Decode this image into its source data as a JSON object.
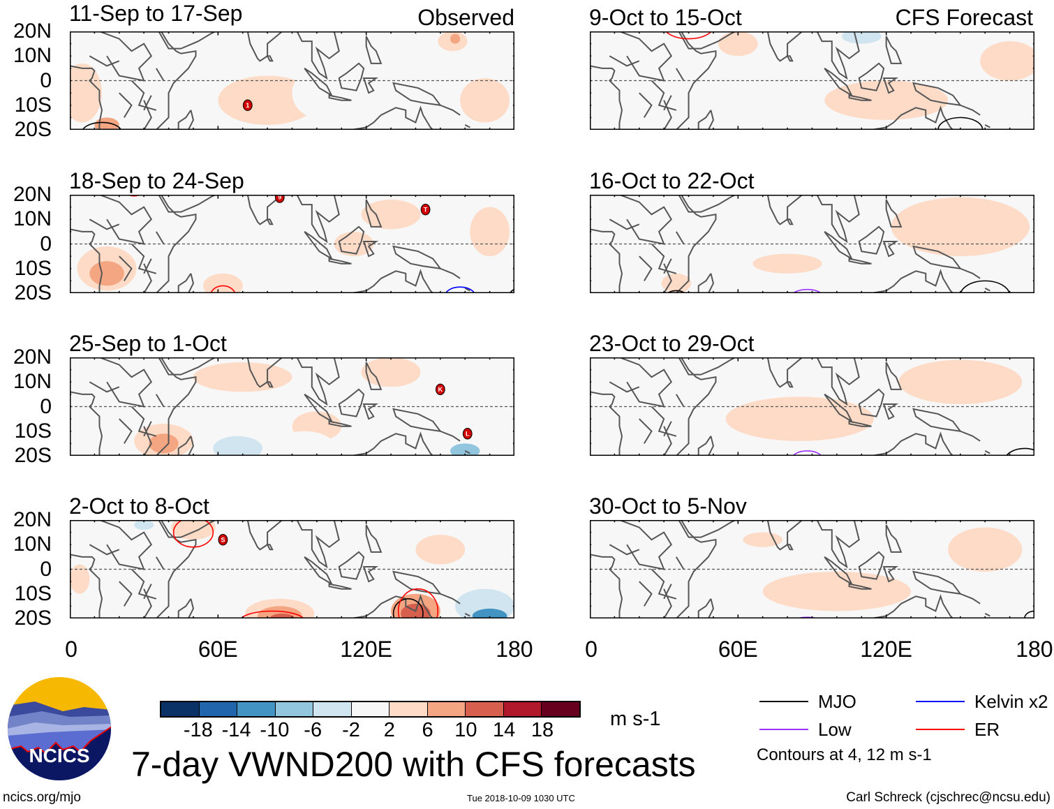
{
  "figure": {
    "title": "7-day VWND200 with CFS forecasts",
    "site": "ncics.org/mjo",
    "timestamp": "Tue 2018-10-09 1030 UTC",
    "author": "Carl Schreck (cjschrec@ncsu.edu)",
    "logo_text": "NCICS",
    "observed_label": "Observed",
    "forecast_label": "CFS Forecast",
    "units": "m s-1"
  },
  "axes": {
    "y_labels": [
      "20N",
      "10N",
      "0",
      "10S",
      "20S"
    ],
    "x_labels": [
      "0",
      "60E",
      "120E",
      "180"
    ],
    "lon_range": [
      0,
      180
    ],
    "lat_range": [
      -20,
      20
    ]
  },
  "colorbar": {
    "colors": [
      "#0a3266",
      "#2166ac",
      "#4393c3",
      "#92c5de",
      "#d1e5f0",
      "#f7f7f7",
      "#fddbc7",
      "#f4a582",
      "#d6604d",
      "#b2182b",
      "#67001f"
    ],
    "labels": [
      "-18",
      "-14",
      "-10",
      "-6",
      "-2",
      "2",
      "6",
      "10",
      "14",
      "18"
    ]
  },
  "legend": {
    "items": [
      {
        "label": "MJO",
        "color": "#000000"
      },
      {
        "label": "Low",
        "color": "#9b30ff"
      },
      {
        "label": "Kelvin x2",
        "color": "#0000ff"
      },
      {
        "label": "ER",
        "color": "#ff0000"
      }
    ],
    "note": "Contours at 4, 12 m s-1"
  },
  "panels": [
    {
      "title": "11-Sep to 17-Sep",
      "kind": "observed",
      "anomalies": [
        {
          "lon": 80,
          "lat": -8,
          "rx": 20,
          "ry": 10,
          "v": 2
        },
        {
          "lon": 5,
          "lat": -5,
          "rx": 8,
          "ry": 12,
          "v": 2
        },
        {
          "lon": 15,
          "lat": -18,
          "rx": 5,
          "ry": 3,
          "v": 6
        },
        {
          "lon": 35,
          "lat": 5,
          "rx": 5,
          "ry": 8,
          "v": -2
        },
        {
          "lon": 100,
          "lat": -5,
          "rx": 10,
          "ry": 10,
          "v": -2
        },
        {
          "lon": 138,
          "lat": 0,
          "rx": 10,
          "ry": 7,
          "v": -2
        },
        {
          "lon": 168,
          "lat": -8,
          "rx": 10,
          "ry": 9,
          "v": 2
        },
        {
          "lon": 155,
          "lat": 16,
          "rx": 6,
          "ry": 4,
          "v": 2
        },
        {
          "lon": 156,
          "lat": 17,
          "rx": 2,
          "ry": 2,
          "v": 6
        },
        {
          "lon": 120,
          "lat": 13,
          "rx": 5,
          "ry": 5,
          "v": -2
        }
      ],
      "contours": [
        {
          "type": "MJO",
          "lon": 13,
          "lat": -21,
          "rx": 8,
          "ry": 4
        }
      ],
      "storms": [
        {
          "lon": 72,
          "lat": -10,
          "label": "1"
        }
      ]
    },
    {
      "title": "18-Sep to 24-Sep",
      "kind": "observed",
      "anomalies": [
        {
          "lon": 15,
          "lat": -10,
          "rx": 12,
          "ry": 9,
          "v": 2
        },
        {
          "lon": 15,
          "lat": -12,
          "rx": 7,
          "ry": 5,
          "v": 6
        },
        {
          "lon": 62,
          "lat": -17,
          "rx": 8,
          "ry": 5,
          "v": 2
        },
        {
          "lon": 130,
          "lat": 12,
          "rx": 12,
          "ry": 6,
          "v": 2
        },
        {
          "lon": 115,
          "lat": 0,
          "rx": 8,
          "ry": 5,
          "v": 2
        },
        {
          "lon": 145,
          "lat": -10,
          "rx": 10,
          "ry": 7,
          "v": -2
        },
        {
          "lon": 80,
          "lat": 0,
          "rx": 6,
          "ry": 6,
          "v": -2
        },
        {
          "lon": 170,
          "lat": 5,
          "rx": 8,
          "ry": 10,
          "v": 2
        },
        {
          "lon": 40,
          "lat": 10,
          "rx": 5,
          "ry": 5,
          "v": -2
        }
      ],
      "contours": [
        {
          "type": "ER",
          "lon": 62,
          "lat": -21,
          "rx": 5,
          "ry": 4
        },
        {
          "type": "Kelvin x2",
          "lon": 158,
          "lat": -21,
          "rx": 6,
          "ry": 3.5
        },
        {
          "type": "ER",
          "lon": 26,
          "lat": 21,
          "rx": 3,
          "ry": 1.5
        },
        {
          "type": "MJO",
          "lon": 182,
          "lat": -21,
          "rx": 4,
          "ry": 3
        }
      ],
      "storms": [
        {
          "lon": 85,
          "lat": 19,
          "label": "9"
        },
        {
          "lon": 144,
          "lat": 14,
          "label": "T"
        }
      ]
    },
    {
      "title": "25-Sep to 1-Oct",
      "kind": "observed",
      "anomalies": [
        {
          "lon": 38,
          "lat": -14,
          "rx": 12,
          "ry": 7,
          "v": 2
        },
        {
          "lon": 38,
          "lat": -15,
          "rx": 6,
          "ry": 4,
          "v": 6
        },
        {
          "lon": 70,
          "lat": 12,
          "rx": 20,
          "ry": 6,
          "v": 2
        },
        {
          "lon": 100,
          "lat": -8,
          "rx": 10,
          "ry": 6,
          "v": 2
        },
        {
          "lon": 95,
          "lat": -16,
          "rx": 12,
          "ry": 6,
          "v": -2
        },
        {
          "lon": 68,
          "lat": -17,
          "rx": 10,
          "ry": 5,
          "v": -6
        },
        {
          "lon": 160,
          "lat": -10,
          "rx": 14,
          "ry": 10,
          "v": -2
        },
        {
          "lon": 160,
          "lat": -18,
          "rx": 6,
          "ry": 3,
          "v": -10
        },
        {
          "lon": 130,
          "lat": 14,
          "rx": 12,
          "ry": 6,
          "v": 2
        },
        {
          "lon": 20,
          "lat": 10,
          "rx": 10,
          "ry": 8,
          "v": -2
        }
      ],
      "contours": [],
      "storms": [
        {
          "lon": 150,
          "lat": 7,
          "label": "K"
        },
        {
          "lon": 161,
          "lat": -11,
          "label": "L"
        }
      ]
    },
    {
      "title": "2-Oct to 8-Oct",
      "kind": "observed",
      "anomalies": [
        {
          "lon": 30,
          "lat": 10,
          "rx": 12,
          "ry": 8,
          "v": -2
        },
        {
          "lon": 30,
          "lat": 18,
          "rx": 4,
          "ry": 2,
          "v": -6
        },
        {
          "lon": 50,
          "lat": 17,
          "rx": 9,
          "ry": 5,
          "v": 2
        },
        {
          "lon": 85,
          "lat": -18,
          "rx": 14,
          "ry": 6,
          "v": 2
        },
        {
          "lon": 85,
          "lat": -19,
          "rx": 9,
          "ry": 4,
          "v": 6
        },
        {
          "lon": 86,
          "lat": -20,
          "rx": 5,
          "ry": 2,
          "v": 10
        },
        {
          "lon": 140,
          "lat": -17,
          "rx": 10,
          "ry": 7,
          "v": 6
        },
        {
          "lon": 140,
          "lat": -18,
          "rx": 6,
          "ry": 4,
          "v": 10
        },
        {
          "lon": 168,
          "lat": -15,
          "rx": 12,
          "ry": 7,
          "v": -6
        },
        {
          "lon": 170,
          "lat": -19,
          "rx": 7,
          "ry": 3,
          "v": -14
        },
        {
          "lon": 25,
          "lat": -12,
          "rx": 12,
          "ry": 6,
          "v": -2
        },
        {
          "lon": 4,
          "lat": -4,
          "rx": 4,
          "ry": 6,
          "v": 2
        },
        {
          "lon": 100,
          "lat": 5,
          "rx": 15,
          "ry": 5,
          "v": -2
        },
        {
          "lon": 150,
          "lat": 8,
          "rx": 10,
          "ry": 6,
          "v": 2
        }
      ],
      "contours": [
        {
          "type": "ER",
          "lon": 50,
          "lat": 15,
          "rx": 8,
          "ry": 6
        },
        {
          "type": "ER",
          "lon": 82,
          "lat": -21,
          "rx": 13,
          "ry": 4
        },
        {
          "type": "MJO",
          "lon": 137,
          "lat": -18,
          "rx": 6,
          "ry": 6
        },
        {
          "type": "ER",
          "lon": 141,
          "lat": -17,
          "rx": 8,
          "ry": 9
        }
      ],
      "storms": [
        {
          "lon": 62,
          "lat": 12,
          "label": "S"
        }
      ]
    },
    {
      "title": "9-Oct to 15-Oct",
      "kind": "forecast",
      "anomalies": [
        {
          "lon": 120,
          "lat": -8,
          "rx": 25,
          "ry": 8,
          "v": 2
        },
        {
          "lon": 170,
          "lat": 8,
          "rx": 12,
          "ry": 8,
          "v": 2
        },
        {
          "lon": 108,
          "lat": 4,
          "rx": 10,
          "ry": 4,
          "v": -2
        },
        {
          "lon": 110,
          "lat": 18,
          "rx": 8,
          "ry": 3,
          "v": -6
        },
        {
          "lon": 30,
          "lat": -5,
          "rx": 8,
          "ry": 10,
          "v": -2
        },
        {
          "lon": 5,
          "lat": -15,
          "rx": 6,
          "ry": 5,
          "v": -2
        },
        {
          "lon": 175,
          "lat": -16,
          "rx": 8,
          "ry": 4,
          "v": -2
        },
        {
          "lon": 60,
          "lat": 15,
          "rx": 8,
          "ry": 5,
          "v": 2
        }
      ],
      "contours": [
        {
          "type": "ER",
          "lon": 40,
          "lat": 22,
          "rx": 10,
          "ry": 5
        },
        {
          "type": "Low",
          "lon": 88,
          "lat": -21.5,
          "rx": 5,
          "ry": 1.5
        },
        {
          "type": "MJO",
          "lon": 150,
          "lat": -20,
          "rx": 9,
          "ry": 5
        }
      ],
      "storms": []
    },
    {
      "title": "16-Oct to 22-Oct",
      "kind": "forecast",
      "anomalies": [
        {
          "lon": 150,
          "lat": 7,
          "rx": 28,
          "ry": 12,
          "v": 2
        },
        {
          "lon": 80,
          "lat": -8,
          "rx": 14,
          "ry": 4,
          "v": 2
        },
        {
          "lon": 75,
          "lat": 5,
          "rx": 10,
          "ry": 3,
          "v": -2
        },
        {
          "lon": 35,
          "lat": -16,
          "rx": 6,
          "ry": 4,
          "v": 2
        },
        {
          "lon": 20,
          "lat": -10,
          "rx": 8,
          "ry": 8,
          "v": -2
        },
        {
          "lon": 130,
          "lat": -12,
          "rx": 12,
          "ry": 5,
          "v": -2
        }
      ],
      "contours": [
        {
          "type": "MJO",
          "lon": 35,
          "lat": -21,
          "rx": 4,
          "ry": 2
        },
        {
          "type": "Low",
          "lon": 88,
          "lat": -21,
          "rx": 6,
          "ry": 2.5
        },
        {
          "type": "MJO",
          "lon": 160,
          "lat": -21,
          "rx": 10,
          "ry": 6
        }
      ],
      "storms": []
    },
    {
      "title": "23-Oct to 29-Oct",
      "kind": "forecast",
      "anomalies": [
        {
          "lon": 85,
          "lat": -5,
          "rx": 30,
          "ry": 9,
          "v": 2
        },
        {
          "lon": 150,
          "lat": 10,
          "rx": 25,
          "ry": 9,
          "v": 2
        },
        {
          "lon": 100,
          "lat": 17,
          "rx": 10,
          "ry": 4,
          "v": -2
        },
        {
          "lon": 170,
          "lat": -5,
          "rx": 6,
          "ry": 9,
          "v": -2
        },
        {
          "lon": 20,
          "lat": 0,
          "rx": 8,
          "ry": 12,
          "v": -2
        },
        {
          "lon": 140,
          "lat": -15,
          "rx": 10,
          "ry": 5,
          "v": -2
        }
      ],
      "contours": [
        {
          "type": "Low",
          "lon": 88,
          "lat": -21,
          "rx": 6,
          "ry": 3
        },
        {
          "type": "MJO",
          "lon": 176,
          "lat": -22,
          "rx": 8,
          "ry": 5
        }
      ],
      "storms": []
    },
    {
      "title": "30-Oct to 5-Nov",
      "kind": "forecast",
      "anomalies": [
        {
          "lon": 100,
          "lat": -9,
          "rx": 30,
          "ry": 8,
          "v": 2
        },
        {
          "lon": 160,
          "lat": 8,
          "rx": 15,
          "ry": 9,
          "v": 2
        },
        {
          "lon": 40,
          "lat": 5,
          "rx": 8,
          "ry": 8,
          "v": -2
        },
        {
          "lon": 130,
          "lat": 12,
          "rx": 10,
          "ry": 5,
          "v": -2
        },
        {
          "lon": 10,
          "lat": -14,
          "rx": 8,
          "ry": 5,
          "v": -2
        },
        {
          "lon": 70,
          "lat": 12,
          "rx": 8,
          "ry": 3,
          "v": 2
        }
      ],
      "contours": [
        {
          "type": "Low",
          "lon": 88,
          "lat": -21.5,
          "rx": 6,
          "ry": 2
        },
        {
          "type": "MJO",
          "lon": 180,
          "lat": -20,
          "rx": 4,
          "ry": 3
        }
      ],
      "storms": []
    }
  ]
}
